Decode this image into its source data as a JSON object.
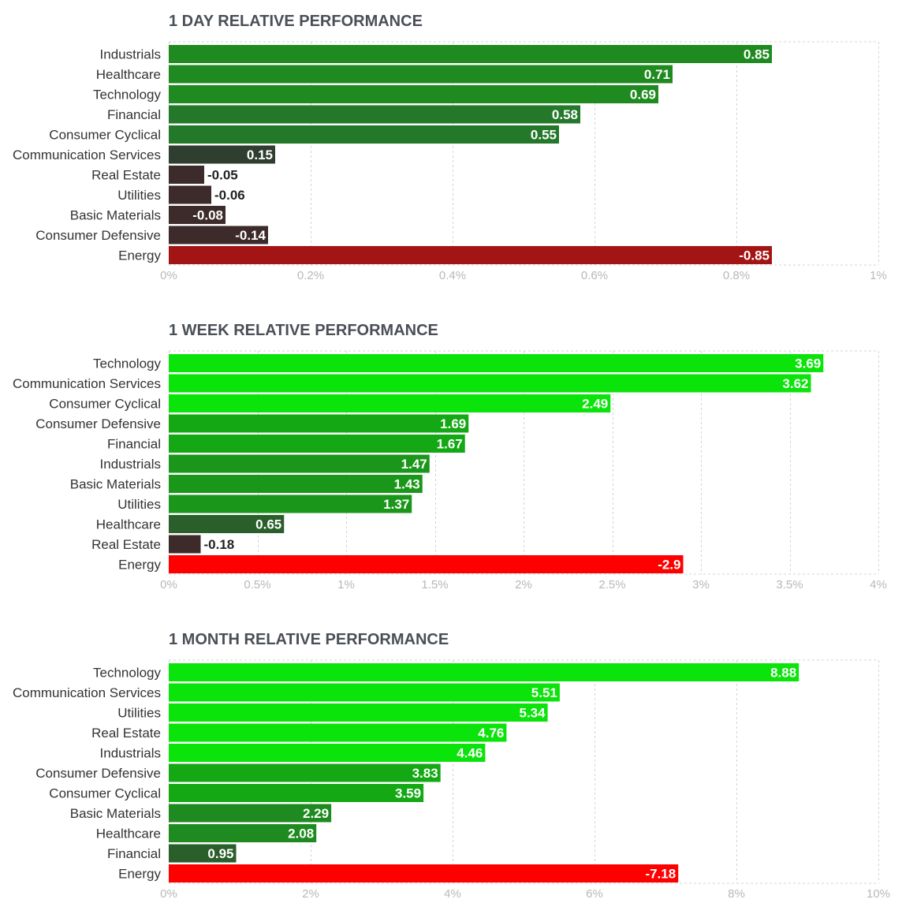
{
  "chart_data": [
    {
      "type": "bar",
      "orientation": "horizontal",
      "title": "1 DAY RELATIVE PERFORMANCE",
      "categories": [
        "Industrials",
        "Healthcare",
        "Technology",
        "Financial",
        "Consumer Cyclical",
        "Communication Services",
        "Real Estate",
        "Utilities",
        "Basic Materials",
        "Consumer Defensive",
        "Energy"
      ],
      "values": [
        0.85,
        0.71,
        0.69,
        0.58,
        0.55,
        0.15,
        -0.05,
        -0.06,
        -0.08,
        -0.14,
        -0.85
      ],
      "value_labels": [
        "0.85",
        "0.71",
        "0.69",
        "0.58",
        "0.55",
        "0.15",
        "-0.05",
        "-0.06",
        "-0.08",
        "-0.14",
        "-0.85"
      ],
      "bar_colors": [
        "#1f8a1f",
        "#1f8a1f",
        "#1f8a1f",
        "#23782a",
        "#23782a",
        "#2f3f2f",
        "#3d2b2b",
        "#3d2b2b",
        "#3d2b2b",
        "#3d2b2b",
        "#a31414"
      ],
      "xlim": [
        0,
        1
      ],
      "ticks": [
        0,
        0.2,
        0.4,
        0.6,
        0.8,
        1
      ],
      "tick_labels": [
        "0%",
        "0.2%",
        "0.4%",
        "0.6%",
        "0.8%",
        "1%"
      ],
      "bar_length": "absolute value",
      "grid": true
    },
    {
      "type": "bar",
      "orientation": "horizontal",
      "title": "1 WEEK RELATIVE PERFORMANCE",
      "categories": [
        "Technology",
        "Communication Services",
        "Consumer Cyclical",
        "Consumer Defensive",
        "Financial",
        "Industrials",
        "Basic Materials",
        "Utilities",
        "Healthcare",
        "Real Estate",
        "Energy"
      ],
      "values": [
        3.69,
        3.62,
        2.49,
        1.69,
        1.67,
        1.47,
        1.43,
        1.37,
        0.65,
        -0.18,
        -2.9
      ],
      "value_labels": [
        "3.69",
        "3.62",
        "2.49",
        "1.69",
        "1.67",
        "1.47",
        "1.43",
        "1.37",
        "0.65",
        "-0.18",
        "-2.9"
      ],
      "bar_colors": [
        "#0ae40a",
        "#0ae40a",
        "#0ae40a",
        "#14a814",
        "#14a814",
        "#1a961a",
        "#1a961a",
        "#1a961a",
        "#2a5e2a",
        "#3d2b2b",
        "#ff0000"
      ],
      "xlim": [
        0,
        4
      ],
      "ticks": [
        0,
        0.5,
        1,
        1.5,
        2,
        2.5,
        3,
        3.5,
        4
      ],
      "tick_labels": [
        "0%",
        "0.5%",
        "1%",
        "1.5%",
        "2%",
        "2.5%",
        "3%",
        "3.5%",
        "4%"
      ],
      "bar_length": "absolute value",
      "grid": true
    },
    {
      "type": "bar",
      "orientation": "horizontal",
      "title": "1 MONTH RELATIVE PERFORMANCE",
      "categories": [
        "Technology",
        "Communication Services",
        "Utilities",
        "Real Estate",
        "Industrials",
        "Consumer Defensive",
        "Consumer Cyclical",
        "Basic Materials",
        "Healthcare",
        "Financial",
        "Energy"
      ],
      "values": [
        8.88,
        5.51,
        5.34,
        4.76,
        4.46,
        3.83,
        3.59,
        2.29,
        2.08,
        0.95,
        -7.18
      ],
      "value_labels": [
        "8.88",
        "5.51",
        "5.34",
        "4.76",
        "4.46",
        "3.83",
        "3.59",
        "2.29",
        "2.08",
        "0.95",
        "-7.18"
      ],
      "bar_colors": [
        "#0ae40a",
        "#0ae40a",
        "#0ae40a",
        "#0ae40a",
        "#0ae40a",
        "#14a814",
        "#14a814",
        "#1f8a1f",
        "#1f8a1f",
        "#2a5e2a",
        "#ff0000"
      ],
      "xlim": [
        0,
        10
      ],
      "ticks": [
        0,
        2,
        4,
        6,
        8,
        10
      ],
      "tick_labels": [
        "0%",
        "2%",
        "4%",
        "6%",
        "8%",
        "10%"
      ],
      "bar_length": "absolute value",
      "grid": true
    }
  ]
}
